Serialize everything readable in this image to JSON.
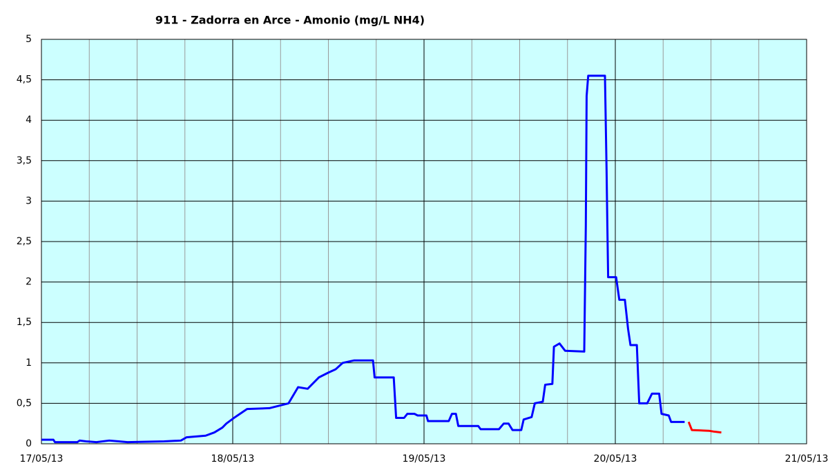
{
  "chart_data": {
    "type": "line",
    "title": "911 - Zadorra en Arce - Amonio (mg/L NH4)",
    "xlim": [
      0,
      96
    ],
    "xticks": [
      {
        "value": 0,
        "label": "17/05/13"
      },
      {
        "value": 24,
        "label": "18/05/13"
      },
      {
        "value": 48,
        "label": "19/05/13"
      },
      {
        "value": 72,
        "label": "20/05/13"
      },
      {
        "value": 96,
        "label": "21/05/13"
      }
    ],
    "xgrid_minor": [
      6,
      12,
      18,
      30,
      36,
      42,
      54,
      60,
      66,
      78,
      84,
      90
    ],
    "ylim": [
      0,
      5
    ],
    "yticks": [
      0,
      {
        "value": 0.5,
        "label": "0,5"
      },
      1,
      {
        "value": 1.5,
        "label": "1,5"
      },
      2,
      {
        "value": 2.5,
        "label": "2,5"
      },
      3,
      {
        "value": 3.5,
        "label": "3,5"
      },
      4,
      {
        "value": 4.5,
        "label": "4,5"
      },
      5
    ],
    "grid": true,
    "background": "#ccffff",
    "series": [
      {
        "color": "#0000ff",
        "x": [
          0,
          1.5,
          1.7,
          4.5,
          4.8,
          5.6,
          6.9,
          8.5,
          9.7,
          10.8,
          15.4,
          17.5,
          18.2,
          20.6,
          21.7,
          22.7,
          23.2,
          24.3,
          25.8,
          28.6,
          31,
          32.2,
          33.4,
          34.8,
          36,
          36.9,
          37.8,
          39.2,
          41.6,
          41.8,
          44.2,
          44.5,
          45.5,
          45.9,
          46.8,
          47.2,
          48.3,
          48.5,
          51.1,
          51.5,
          52,
          52.3,
          54.8,
          55.1,
          57.4,
          58,
          58.6,
          59.1,
          60.2,
          60.5,
          61.5,
          61.9,
          62.9,
          63.2,
          64.1,
          64.3,
          65,
          65.7,
          68.1,
          68.3,
          68.4,
          68.6,
          70.7,
          70.9,
          71,
          71.1,
          72.1,
          72.5,
          73.2,
          73.6,
          73.9,
          74.7,
          75,
          76,
          76.6,
          77.5,
          77.8,
          78.7,
          79,
          80.7
        ],
        "values": [
          0.05,
          0.05,
          0.02,
          0.02,
          0.04,
          0.03,
          0.02,
          0.04,
          0.03,
          0.02,
          0.03,
          0.04,
          0.08,
          0.1,
          0.14,
          0.2,
          0.25,
          0.33,
          0.43,
          0.44,
          0.5,
          0.7,
          0.68,
          0.82,
          0.88,
          0.92,
          1.0,
          1.03,
          1.03,
          0.82,
          0.82,
          0.32,
          0.32,
          0.37,
          0.37,
          0.35,
          0.35,
          0.28,
          0.28,
          0.37,
          0.37,
          0.22,
          0.22,
          0.18,
          0.18,
          0.25,
          0.25,
          0.17,
          0.17,
          0.3,
          0.33,
          0.5,
          0.52,
          0.73,
          0.74,
          1.2,
          1.24,
          1.15,
          1.14,
          2.7,
          4.3,
          4.55,
          4.55,
          3.4,
          2.7,
          2.06,
          2.06,
          1.78,
          1.78,
          1.42,
          1.22,
          1.22,
          0.5,
          0.5,
          0.62,
          0.62,
          0.37,
          0.35,
          0.27,
          0.27
        ]
      },
      {
        "color": "#ff0000",
        "x": [
          81.2,
          81.6,
          83.8,
          84.4,
          85.3
        ],
        "values": [
          0.27,
          0.17,
          0.16,
          0.15,
          0.14
        ]
      }
    ]
  }
}
